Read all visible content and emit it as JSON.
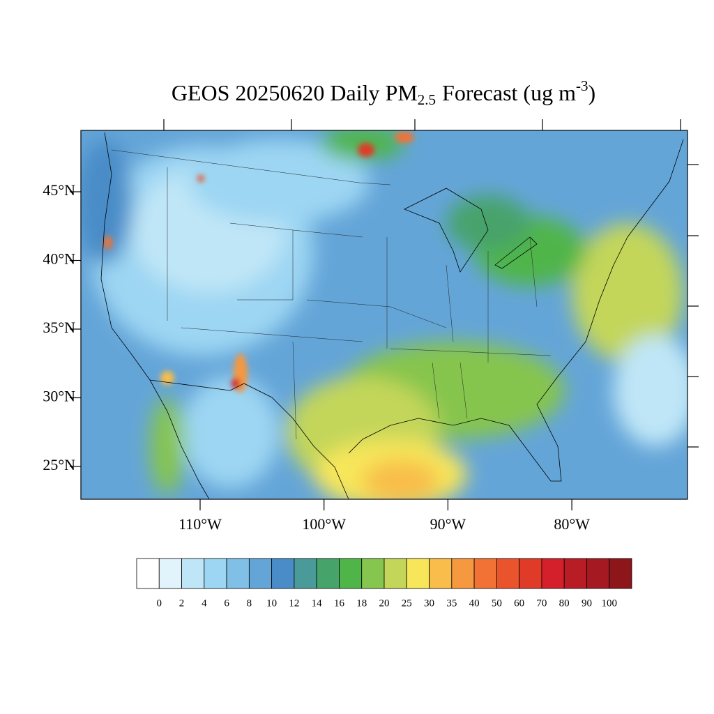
{
  "map": {
    "title": {
      "text": "GEOS 20250620 Daily PM",
      "subscript": "2.5",
      "text_after_subscript": "Forecast (ug m",
      "superscript": "-3",
      "text_end": ")"
    },
    "lat_labels": [
      {
        "value": 45,
        "label": "45°N"
      },
      {
        "value": 40,
        "label": "40°N"
      },
      {
        "value": 35,
        "label": "35°N"
      },
      {
        "value": 30,
        "label": "30°N"
      },
      {
        "value": 25,
        "label": "25°N"
      }
    ],
    "lon_labels": [
      {
        "value": -110,
        "label": "110°W"
      },
      {
        "value": -100,
        "label": "100°W"
      },
      {
        "value": -90,
        "label": "90°W"
      },
      {
        "value": -80,
        "label": "80°W"
      }
    ],
    "colorbar": {
      "levels": [
        0,
        2,
        4,
        6,
        8,
        10,
        12,
        14,
        16,
        18,
        20,
        25,
        30,
        35,
        40,
        50,
        60,
        70,
        80,
        90,
        100
      ],
      "colors": [
        "#ffffff",
        "#e1f3fb",
        "#bfe6f7",
        "#9dd6f3",
        "#80bfe6",
        "#64a5d8",
        "#4a8cc8",
        "#4a9a9a",
        "#46a36a",
        "#4fb548",
        "#86c54e",
        "#c3d65a",
        "#f7e65a",
        "#f8bd4a",
        "#f59840",
        "#f17234",
        "#e9542c",
        "#e03a28",
        "#d4202b",
        "#b81c24",
        "#a51a22",
        "#8d161a"
      ]
    }
  }
}
